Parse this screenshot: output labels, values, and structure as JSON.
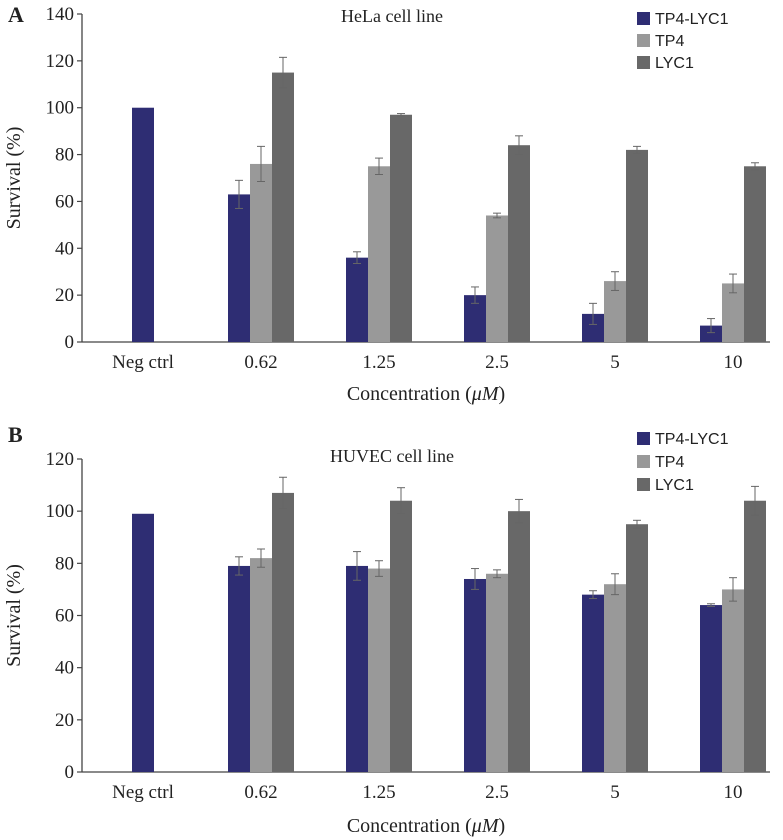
{
  "colors": {
    "TP4-LYC1": "#2e2d73",
    "TP4": "#999999",
    "LYC1": "#686868",
    "axis": "#444444",
    "error": "#666666"
  },
  "chart_data": [
    {
      "panel": "A",
      "type": "bar",
      "title": "HeLa cell line",
      "xlabel": "Concentration",
      "xlabel_unit": "(μM)",
      "ylabel": "Survival (%)",
      "ylim": [
        0,
        140
      ],
      "yticks": [
        0,
        20,
        40,
        60,
        80,
        100,
        120,
        140
      ],
      "categories": [
        "Neg ctrl",
        "0.62",
        "1.25",
        "2.5",
        "5",
        "10"
      ],
      "legend_position": "top-right",
      "series": [
        {
          "name": "TP4-LYC1",
          "values": [
            100,
            63,
            36,
            20,
            12,
            7
          ],
          "errors": [
            0,
            6,
            2.5,
            3.5,
            4.5,
            3
          ]
        },
        {
          "name": "TP4",
          "values": [
            null,
            76,
            75,
            54,
            26,
            25
          ],
          "errors": [
            null,
            7.5,
            3.5,
            1,
            4,
            4
          ]
        },
        {
          "name": "LYC1",
          "values": [
            null,
            115,
            97,
            84,
            82,
            75
          ],
          "errors": [
            null,
            6.5,
            0.5,
            4,
            1.5,
            1.5
          ]
        }
      ]
    },
    {
      "panel": "B",
      "type": "bar",
      "title": "HUVEC cell line",
      "xlabel": "Concentration",
      "xlabel_unit": "(μM)",
      "ylabel": "Survival (%)",
      "ylim": [
        0,
        120
      ],
      "yticks": [
        0,
        20,
        40,
        60,
        80,
        100,
        120
      ],
      "categories": [
        "Neg ctrl",
        "0.62",
        "1.25",
        "2.5",
        "5",
        "10"
      ],
      "legend_position": "top-right",
      "series": [
        {
          "name": "TP4-LYC1",
          "values": [
            99,
            79,
            79,
            74,
            68,
            64
          ],
          "errors": [
            0,
            3.5,
            5.5,
            4,
            1.5,
            0.5
          ]
        },
        {
          "name": "TP4",
          "values": [
            null,
            82,
            78,
            76,
            72,
            70
          ],
          "errors": [
            null,
            3.5,
            3,
            1.5,
            4,
            4.5
          ]
        },
        {
          "name": "LYC1",
          "values": [
            null,
            107,
            104,
            100,
            95,
            104
          ],
          "errors": [
            null,
            6,
            5,
            4.5,
            1.5,
            5.5
          ]
        }
      ]
    }
  ]
}
